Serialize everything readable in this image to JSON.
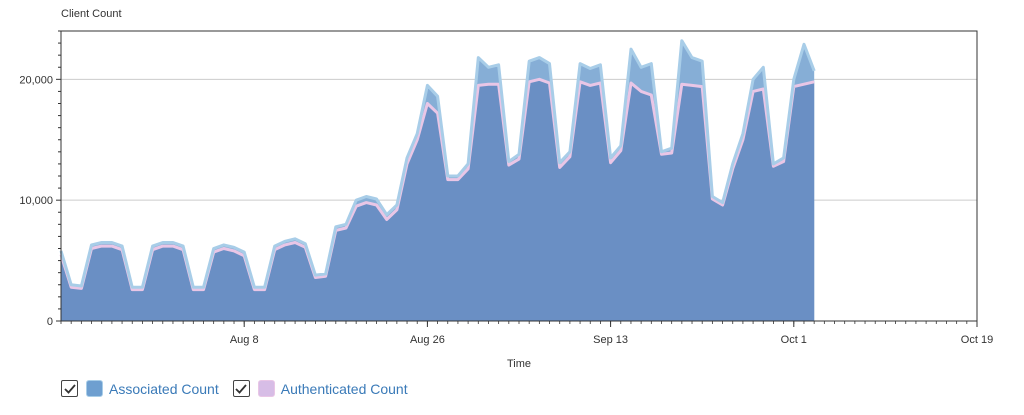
{
  "chart_title": "Client Count",
  "colors": {
    "associated_fill": "#6a8fc4",
    "associated_outline": "#a8cde8",
    "associated_top": "#86aed6",
    "authenticated_line": "#e9c6e6",
    "legend_assoc_fill": "#6e9fd0",
    "legend_auth_fill": "#d7bde6",
    "grid": "#cccccc",
    "legend_text": "#3a7ab8"
  },
  "legend": [
    {
      "label": "Associated Count",
      "checked": true
    },
    {
      "label": "Authenticated Count",
      "checked": true
    }
  ],
  "chart_data": {
    "type": "area",
    "title": "Client Count",
    "xlabel": "Time",
    "ylabel": "",
    "ylim": [
      0,
      24000
    ],
    "y_ticks": [
      0,
      10000,
      20000
    ],
    "y_tick_labels": [
      "0",
      "10,000",
      "20,000"
    ],
    "x_range": [
      "Jul 21",
      "Oct 19"
    ],
    "x_ticks": [
      {
        "date": "Aug 8",
        "label": "Aug 8"
      },
      {
        "date": "Aug 26",
        "label": "Aug 26"
      },
      {
        "date": "Sep 13",
        "label": "Sep 13"
      },
      {
        "date": "Oct 1",
        "label": "Oct 1"
      },
      {
        "date": "Oct 19",
        "label": "Oct 19"
      }
    ],
    "grid": true,
    "legend_position": "bottom-left",
    "series": [
      {
        "name": "Associated Count",
        "points": [
          [
            "Jul 21",
            5800
          ],
          [
            "Jul 22",
            3000
          ],
          [
            "Jul 23",
            2900
          ],
          [
            "Jul 24",
            6300
          ],
          [
            "Jul 25",
            6500
          ],
          [
            "Jul 26",
            6500
          ],
          [
            "Jul 27",
            6200
          ],
          [
            "Jul 28",
            2800
          ],
          [
            "Jul 29",
            2800
          ],
          [
            "Jul 30",
            6200
          ],
          [
            "Jul 31",
            6500
          ],
          [
            "Aug 1",
            6500
          ],
          [
            "Aug 2",
            6200
          ],
          [
            "Aug 3",
            2800
          ],
          [
            "Aug 4",
            2800
          ],
          [
            "Aug 5",
            6000
          ],
          [
            "Aug 6",
            6300
          ],
          [
            "Aug 7",
            6100
          ],
          [
            "Aug 8",
            5700
          ],
          [
            "Aug 9",
            2800
          ],
          [
            "Aug 10",
            2800
          ],
          [
            "Aug 11",
            6200
          ],
          [
            "Aug 12",
            6600
          ],
          [
            "Aug 13",
            6800
          ],
          [
            "Aug 14",
            6400
          ],
          [
            "Aug 15",
            3800
          ],
          [
            "Aug 16",
            3900
          ],
          [
            "Aug 17",
            7800
          ],
          [
            "Aug 18",
            8000
          ],
          [
            "Aug 19",
            10000
          ],
          [
            "Aug 20",
            10300
          ],
          [
            "Aug 21",
            10100
          ],
          [
            "Aug 22",
            8800
          ],
          [
            "Aug 23",
            9600
          ],
          [
            "Aug 24",
            13500
          ],
          [
            "Aug 25",
            15500
          ],
          [
            "Aug 26",
            19500
          ],
          [
            "Aug 27",
            18600
          ],
          [
            "Aug 28",
            12000
          ],
          [
            "Aug 29",
            12000
          ],
          [
            "Aug 30",
            13000
          ],
          [
            "Aug 31",
            21800
          ],
          [
            "Sep 1",
            21000
          ],
          [
            "Sep 2",
            21200
          ],
          [
            "Sep 3",
            13200
          ],
          [
            "Sep 4",
            13800
          ],
          [
            "Sep 5",
            21500
          ],
          [
            "Sep 6",
            21800
          ],
          [
            "Sep 7",
            21300
          ],
          [
            "Sep 8",
            13100
          ],
          [
            "Sep 9",
            14000
          ],
          [
            "Sep 10",
            21300
          ],
          [
            "Sep 11",
            20900
          ],
          [
            "Sep 12",
            21200
          ],
          [
            "Sep 13",
            13500
          ],
          [
            "Sep 14",
            14500
          ],
          [
            "Sep 15",
            22500
          ],
          [
            "Sep 16",
            21000
          ],
          [
            "Sep 17",
            21300
          ],
          [
            "Sep 18",
            14000
          ],
          [
            "Sep 19",
            14300
          ],
          [
            "Sep 20",
            23200
          ],
          [
            "Sep 21",
            21800
          ],
          [
            "Sep 22",
            21500
          ],
          [
            "Sep 23",
            10300
          ],
          [
            "Sep 24",
            9800
          ],
          [
            "Sep 25",
            13000
          ],
          [
            "Sep 26",
            15500
          ],
          [
            "Sep 27",
            20000
          ],
          [
            "Sep 28",
            21000
          ],
          [
            "Sep 29",
            13000
          ],
          [
            "Sep 30",
            13500
          ],
          [
            "Oct 1",
            20000
          ],
          [
            "Oct 2",
            22900
          ],
          [
            "Oct 3",
            20700
          ]
        ]
      },
      {
        "name": "Authenticated Count",
        "points": [
          [
            "Jul 21",
            5500
          ],
          [
            "Jul 22",
            2800
          ],
          [
            "Jul 23",
            2700
          ],
          [
            "Jul 24",
            6000
          ],
          [
            "Jul 25",
            6200
          ],
          [
            "Jul 26",
            6200
          ],
          [
            "Jul 27",
            5900
          ],
          [
            "Jul 28",
            2600
          ],
          [
            "Jul 29",
            2600
          ],
          [
            "Jul 30",
            5900
          ],
          [
            "Jul 31",
            6200
          ],
          [
            "Aug 1",
            6200
          ],
          [
            "Aug 2",
            5900
          ],
          [
            "Aug 3",
            2600
          ],
          [
            "Aug 4",
            2600
          ],
          [
            "Aug 5",
            5700
          ],
          [
            "Aug 6",
            6000
          ],
          [
            "Aug 7",
            5800
          ],
          [
            "Aug 8",
            5400
          ],
          [
            "Aug 9",
            2600
          ],
          [
            "Aug 10",
            2600
          ],
          [
            "Aug 11",
            5900
          ],
          [
            "Aug 12",
            6300
          ],
          [
            "Aug 13",
            6500
          ],
          [
            "Aug 14",
            6100
          ],
          [
            "Aug 15",
            3600
          ],
          [
            "Aug 16",
            3700
          ],
          [
            "Aug 17",
            7500
          ],
          [
            "Aug 18",
            7700
          ],
          [
            "Aug 19",
            9500
          ],
          [
            "Aug 20",
            9800
          ],
          [
            "Aug 21",
            9600
          ],
          [
            "Aug 22",
            8400
          ],
          [
            "Aug 23",
            9200
          ],
          [
            "Aug 24",
            13000
          ],
          [
            "Aug 25",
            15000
          ],
          [
            "Aug 26",
            18000
          ],
          [
            "Aug 27",
            17200
          ],
          [
            "Aug 28",
            11700
          ],
          [
            "Aug 29",
            11700
          ],
          [
            "Aug 30",
            12600
          ],
          [
            "Aug 31",
            19500
          ],
          [
            "Sep 1",
            19600
          ],
          [
            "Sep 2",
            19600
          ],
          [
            "Sep 3",
            12900
          ],
          [
            "Sep 4",
            13400
          ],
          [
            "Sep 5",
            19800
          ],
          [
            "Sep 6",
            20000
          ],
          [
            "Sep 7",
            19700
          ],
          [
            "Sep 8",
            12700
          ],
          [
            "Sep 9",
            13600
          ],
          [
            "Sep 10",
            19800
          ],
          [
            "Sep 11",
            19500
          ],
          [
            "Sep 12",
            19700
          ],
          [
            "Sep 13",
            13100
          ],
          [
            "Sep 14",
            14100
          ],
          [
            "Sep 15",
            19700
          ],
          [
            "Sep 16",
            19000
          ],
          [
            "Sep 17",
            18700
          ],
          [
            "Sep 18",
            13800
          ],
          [
            "Sep 19",
            13900
          ],
          [
            "Sep 20",
            19600
          ],
          [
            "Sep 21",
            19500
          ],
          [
            "Sep 22",
            19400
          ],
          [
            "Sep 23",
            10100
          ],
          [
            "Sep 24",
            9600
          ],
          [
            "Sep 25",
            12600
          ],
          [
            "Sep 26",
            15000
          ],
          [
            "Sep 27",
            19000
          ],
          [
            "Sep 28",
            19200
          ],
          [
            "Sep 29",
            12800
          ],
          [
            "Sep 30",
            13200
          ],
          [
            "Oct 1",
            19400
          ],
          [
            "Oct 2",
            19600
          ],
          [
            "Oct 3",
            19800
          ]
        ]
      }
    ]
  }
}
